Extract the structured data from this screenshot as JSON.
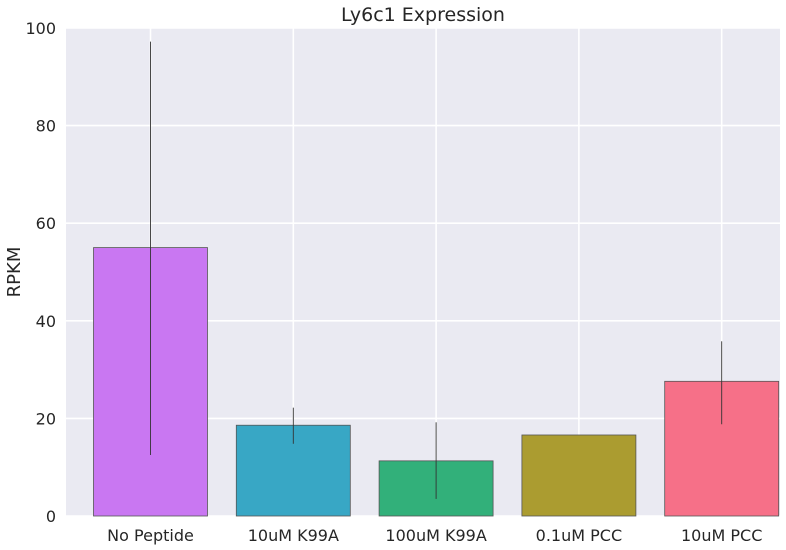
{
  "chart_data": {
    "type": "bar",
    "title": "Ly6c1 Expression",
    "xlabel": "",
    "ylabel": "RPKM",
    "categories": [
      "No Peptide",
      "10uM K99A",
      "100uM K99A",
      "0.1uM PCC",
      "10uM PCC"
    ],
    "values": [
      55.0,
      18.6,
      11.3,
      16.6,
      27.6
    ],
    "error_low": [
      12.5,
      14.8,
      3.5,
      null,
      18.8
    ],
    "error_high": [
      97.2,
      22.2,
      19.2,
      null,
      35.8
    ],
    "ylim": [
      0,
      100
    ],
    "yticks": [
      0,
      20,
      40,
      60,
      80,
      100
    ],
    "grid": true,
    "legend": "none",
    "colors": [
      "#c977f2",
      "#38a7c5",
      "#32b07a",
      "#ab9c30",
      "#f67088"
    ],
    "background": "#eaeaf2",
    "gridline_color": "#ffffff",
    "errorbar_color": "#333333",
    "bar_edge_color": "#555555"
  }
}
